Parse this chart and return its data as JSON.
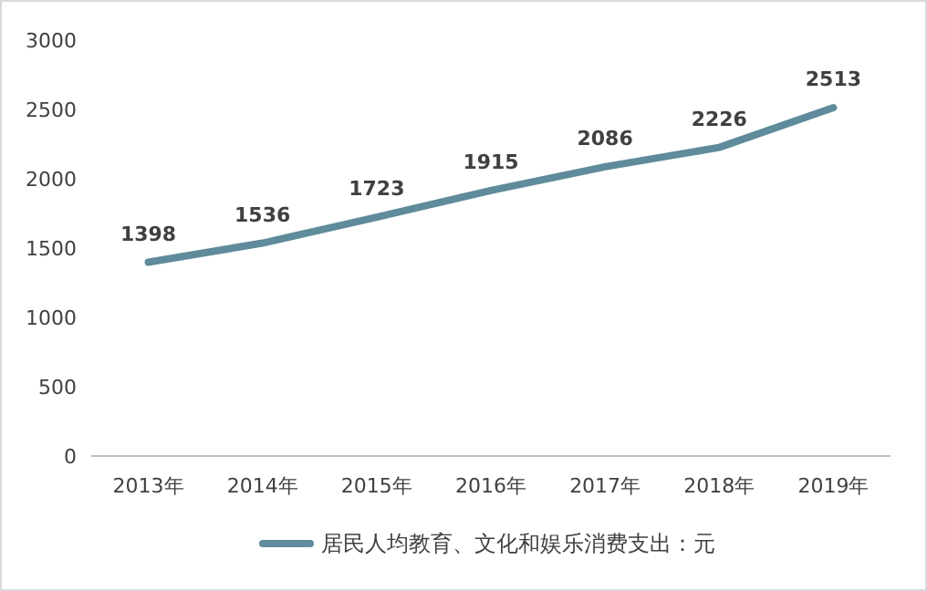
{
  "chart_data": {
    "type": "line",
    "categories": [
      "2013年",
      "2014年",
      "2015年",
      "2016年",
      "2017年",
      "2018年",
      "2019年"
    ],
    "series": [
      {
        "name": "居民人均教育、文化和娱乐消费支出：元",
        "color": "#5f8b9b",
        "values": [
          1398,
          1536,
          1723,
          1915,
          2086,
          2226,
          2513
        ]
      }
    ],
    "ylim": [
      0,
      3000
    ],
    "yticks": [
      0,
      500,
      1000,
      1500,
      2000,
      2500,
      3000
    ],
    "grid": false,
    "legend": "bottom",
    "data_labels": true,
    "marker": "none",
    "line_style": "solid"
  }
}
